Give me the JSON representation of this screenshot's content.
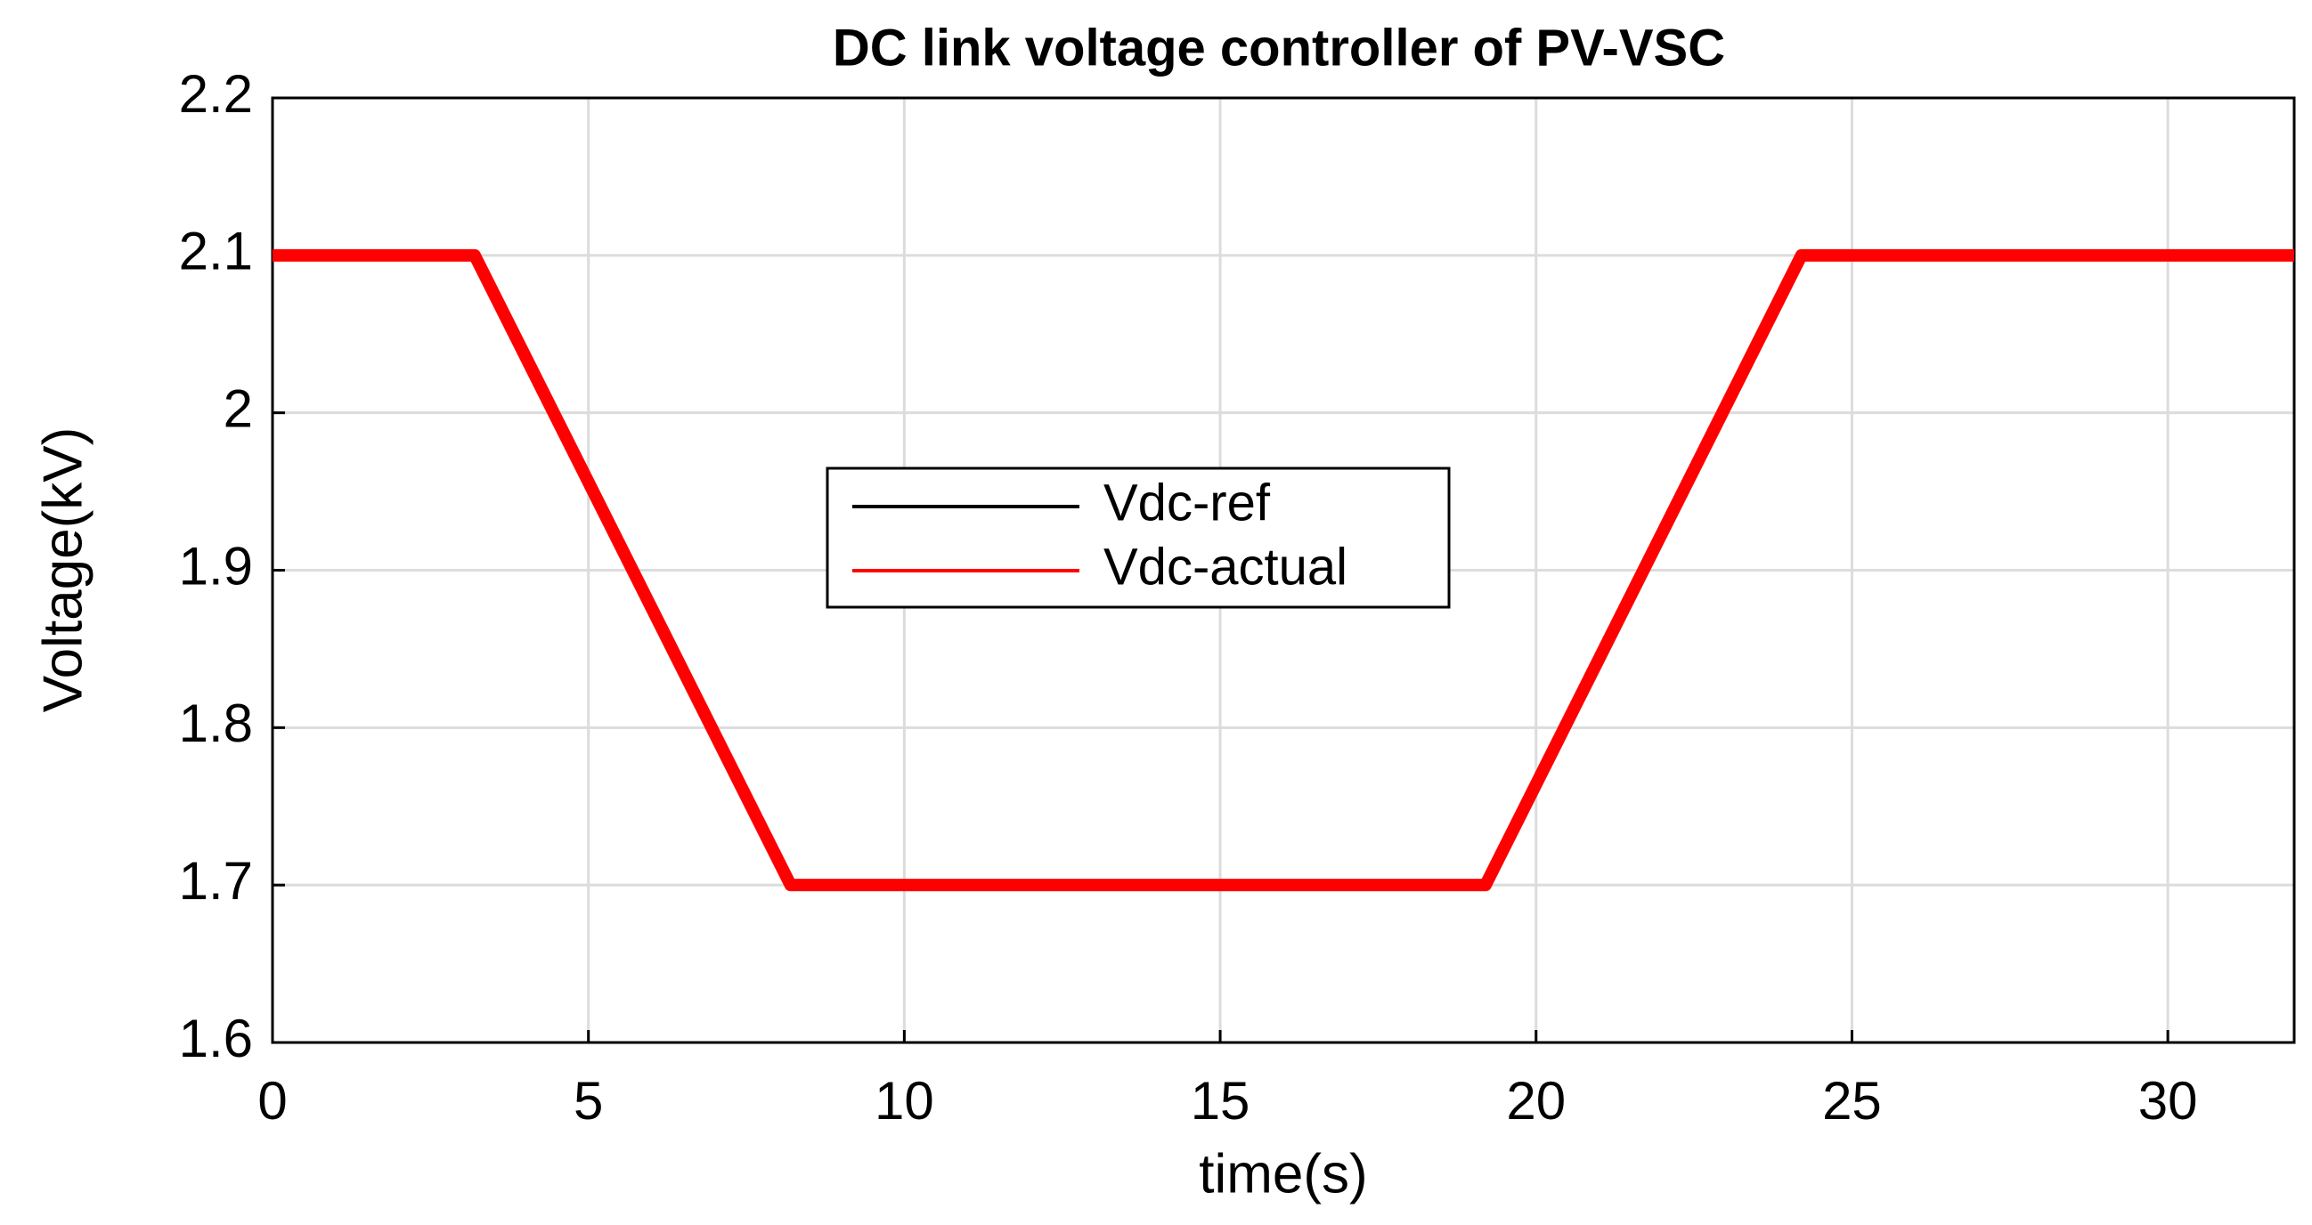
{
  "chart_data": {
    "type": "line",
    "title": "DC link voltage controller of PV-VSC",
    "x_label": "time(s)",
    "y_label": "Voltage(kV)",
    "x": [
      0,
      3.2,
      8.2,
      19.2,
      24.2,
      32
    ],
    "series": [
      {
        "name": "Vdc-ref",
        "color": "#000000",
        "values": [
          2.1,
          2.1,
          1.7,
          1.7,
          2.1,
          2.1
        ]
      },
      {
        "name": "Vdc-actual",
        "color": "#ff0000",
        "values": [
          2.1,
          2.1,
          1.7,
          1.7,
          2.1,
          2.1
        ]
      }
    ],
    "xlim": [
      0,
      32
    ],
    "ylim": [
      1.6,
      2.2
    ],
    "xticks": [
      0,
      5,
      10,
      15,
      20,
      25,
      30
    ],
    "yticks": [
      1.6,
      1.7,
      1.8,
      1.9,
      2,
      2.1,
      2.2
    ],
    "grid": true,
    "legend": "center"
  }
}
